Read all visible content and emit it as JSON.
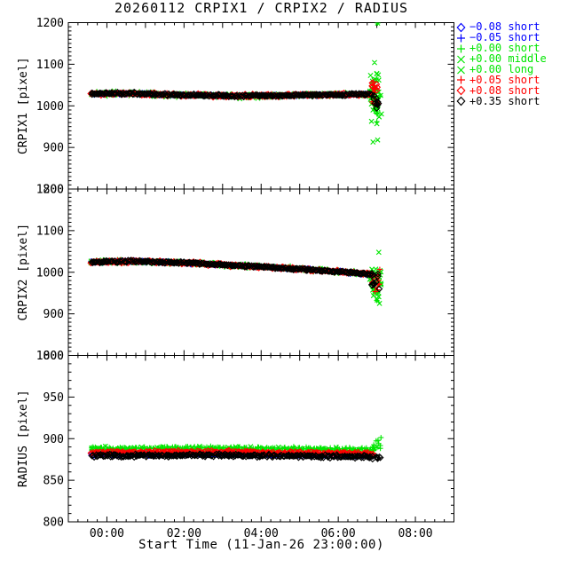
{
  "title": "20260112 CRPIX1 / CRPIX2 / RADIUS",
  "xlabel": "Start Time (11-Jan-26 23:00:00)",
  "colors": {
    "blue": "#0000ff",
    "green": "#00e600",
    "red": "#ff0000",
    "black": "#000000"
  },
  "legend": [
    {
      "symbol": "diamond",
      "color": "blue",
      "label": "−0.08 short"
    },
    {
      "symbol": "plus",
      "color": "blue",
      "label": "−0.05 short"
    },
    {
      "symbol": "plus",
      "color": "green",
      "label": "+0.00 short"
    },
    {
      "symbol": "cross",
      "color": "green",
      "label": "+0.00 middle"
    },
    {
      "symbol": "cross",
      "color": "green",
      "label": "+0.00 long"
    },
    {
      "symbol": "plus",
      "color": "red",
      "label": "+0.05 short"
    },
    {
      "symbol": "diamond",
      "color": "red",
      "label": "+0.08 short"
    },
    {
      "symbol": "diamond",
      "color": "black",
      "label": "+0.35 short"
    }
  ],
  "chart_data": {
    "type": "scatter",
    "title": "20260112 CRPIX1 / CRPIX2 / RADIUS",
    "x_axis": {
      "label": "Start Time (11-Jan-26 23:00:00)",
      "range_hours": [
        -1,
        9
      ],
      "major_tick_hours": 1,
      "minor_tick_hours": 0.25,
      "ticks": [
        {
          "t": 0,
          "label": "00:00"
        },
        {
          "t": 2,
          "label": "02:00"
        },
        {
          "t": 4,
          "label": "04:00"
        },
        {
          "t": 6,
          "label": "06:00"
        },
        {
          "t": 8,
          "label": "08:00"
        }
      ]
    },
    "panels": [
      {
        "name": "CRPIX1",
        "ylabel": "CRPIX1 [pixel]",
        "ylim": [
          800,
          1200
        ],
        "yticks": [
          800,
          900,
          1000,
          1100,
          1200
        ],
        "ytick_major": 100,
        "ytick_minor": 10,
        "band_t": [
          -0.4,
          6.86
        ],
        "trend": [
          [
            -0.4,
            1029
          ],
          [
            0.5,
            1030
          ],
          [
            1.5,
            1027
          ],
          [
            2.5,
            1025
          ],
          [
            3.5,
            1024
          ],
          [
            4.5,
            1025
          ],
          [
            5.5,
            1026
          ],
          [
            6.3,
            1027
          ],
          [
            6.86,
            1028
          ]
        ],
        "band": [
          {
            "li": 0,
            "n": 110,
            "sigma": 1.1,
            "offset": 0
          },
          {
            "li": 1,
            "n": 110,
            "sigma": 1.1,
            "offset": 0
          },
          {
            "li": 2,
            "n": 260,
            "sigma": 2.2,
            "offset": 0
          },
          {
            "li": 3,
            "n": 50,
            "sigma": 2.4,
            "offset": 0
          },
          {
            "li": 4,
            "n": 50,
            "sigma": 2.4,
            "offset": 0
          },
          {
            "li": 5,
            "n": 240,
            "sigma": 1.6,
            "offset": 0
          },
          {
            "li": 6,
            "n": 140,
            "sigma": 1.6,
            "offset": 0
          },
          {
            "li": 7,
            "n": 260,
            "sigma": 1.2,
            "offset": 0
          }
        ],
        "clusters": [
          {
            "li": 3,
            "n": 40,
            "t": [
              6.82,
              7.12
            ],
            "mean": 1030,
            "sigma": 26
          },
          {
            "li": 2,
            "n": 12,
            "t": [
              6.85,
              7.1
            ],
            "mean": 1016,
            "sigma": 20
          },
          {
            "li": 5,
            "n": 10,
            "t": [
              6.85,
              7.05
            ],
            "mean": 1020,
            "sigma": 16
          },
          {
            "li": 6,
            "n": 6,
            "t": [
              6.86,
              7.02
            ],
            "mean": 1040,
            "sigma": 10
          },
          {
            "li": 7,
            "n": 8,
            "t": [
              6.88,
              7.05
            ],
            "mean": 1008,
            "sigma": 9
          }
        ],
        "outliers": [
          [
            7.02,
            1199,
            3
          ],
          [
            7.02,
            1199,
            2
          ],
          [
            7.0,
            1078,
            3
          ],
          [
            7.05,
            1062,
            3
          ],
          [
            6.88,
            1055,
            6
          ],
          [
            7.02,
            1002,
            7
          ],
          [
            7.0,
            962,
            2
          ],
          [
            7.0,
            957,
            3
          ],
          [
            7.02,
            918,
            3
          ],
          [
            6.9,
            913,
            3
          ]
        ]
      },
      {
        "name": "CRPIX2",
        "ylabel": "CRPIX2 [pixel]",
        "ylim": [
          800,
          1200
        ],
        "yticks": [
          800,
          900,
          1000,
          1100,
          1200
        ],
        "ytick_major": 100,
        "ytick_minor": 10,
        "band_t": [
          -0.4,
          6.86
        ],
        "trend": [
          [
            -0.4,
            1025
          ],
          [
            0.8,
            1026
          ],
          [
            1.6,
            1024
          ],
          [
            2.4,
            1021
          ],
          [
            3.2,
            1017
          ],
          [
            4.0,
            1013
          ],
          [
            4.8,
            1009
          ],
          [
            5.6,
            1004
          ],
          [
            6.4,
            999
          ],
          [
            6.86,
            995
          ]
        ],
        "band": [
          {
            "li": 0,
            "n": 110,
            "sigma": 1.1,
            "offset": 0
          },
          {
            "li": 1,
            "n": 110,
            "sigma": 1.1,
            "offset": 0
          },
          {
            "li": 2,
            "n": 260,
            "sigma": 2.2,
            "offset": 0
          },
          {
            "li": 3,
            "n": 50,
            "sigma": 2.4,
            "offset": 0
          },
          {
            "li": 4,
            "n": 50,
            "sigma": 2.4,
            "offset": 0
          },
          {
            "li": 5,
            "n": 240,
            "sigma": 1.6,
            "offset": 0
          },
          {
            "li": 6,
            "n": 140,
            "sigma": 1.6,
            "offset": 0
          },
          {
            "li": 7,
            "n": 260,
            "sigma": 1.2,
            "offset": 0
          }
        ],
        "clusters": [
          {
            "li": 3,
            "n": 40,
            "t": [
              6.8,
              7.12
            ],
            "mean": 975,
            "sigma": 17
          },
          {
            "li": 2,
            "n": 10,
            "t": [
              6.85,
              7.1
            ],
            "mean": 983,
            "sigma": 12
          },
          {
            "li": 5,
            "n": 8,
            "t": [
              6.85,
              7.08
            ],
            "mean": 980,
            "sigma": 11
          },
          {
            "li": 6,
            "n": 5,
            "t": [
              6.86,
              7.05
            ],
            "mean": 974,
            "sigma": 9
          },
          {
            "li": 7,
            "n": 10,
            "t": [
              6.86,
              7.08
            ],
            "mean": 978,
            "sigma": 11
          }
        ],
        "outliers": [
          [
            7.05,
            1048,
            3
          ],
          [
            6.95,
            955,
            3
          ],
          [
            7.05,
            941,
            3
          ],
          [
            7.0,
            932,
            2
          ],
          [
            7.07,
            925,
            3
          ]
        ]
      },
      {
        "name": "RADIUS",
        "ylabel": "RADIUS [pixel]",
        "ylim": [
          800,
          1000
        ],
        "yticks": [
          800,
          850,
          900,
          950,
          1000
        ],
        "ytick_major": 50,
        "ytick_minor": 10,
        "band_t": [
          -0.4,
          6.9
        ],
        "trend": [
          [
            -0.4,
            888
          ],
          [
            3.0,
            888.5
          ],
          [
            6.9,
            886.5
          ]
        ],
        "band": [
          {
            "li": 0,
            "n": 100,
            "sigma": 0.8,
            "offset": -7
          },
          {
            "li": 1,
            "n": 100,
            "sigma": 0.8,
            "offset": -7
          },
          {
            "li": 2,
            "n": 260,
            "sigma": 1.1,
            "offset": 0
          },
          {
            "li": 3,
            "n": 40,
            "sigma": 1.2,
            "offset": 0
          },
          {
            "li": 4,
            "n": 40,
            "sigma": 1.2,
            "offset": 0
          },
          {
            "li": 5,
            "n": 240,
            "sigma": 0.9,
            "offset": -4.5
          },
          {
            "li": 6,
            "n": 120,
            "sigma": 0.9,
            "offset": -4.5
          },
          {
            "li": 7,
            "n": 260,
            "sigma": 0.9,
            "offset": -8.5
          }
        ],
        "clusters": [
          {
            "li": 2,
            "n": 10,
            "t": [
              6.9,
              7.12
            ],
            "mean": 893,
            "sigma": 3.5
          },
          {
            "li": 7,
            "n": 5,
            "t": [
              6.92,
              7.1
            ],
            "mean": 877,
            "sigma": 1.2
          }
        ],
        "outliers": [
          [
            7.03,
            898,
            2
          ],
          [
            7.05,
            894,
            2
          ],
          [
            7.0,
            890,
            3
          ],
          [
            7.02,
            876,
            7
          ]
        ]
      }
    ]
  }
}
